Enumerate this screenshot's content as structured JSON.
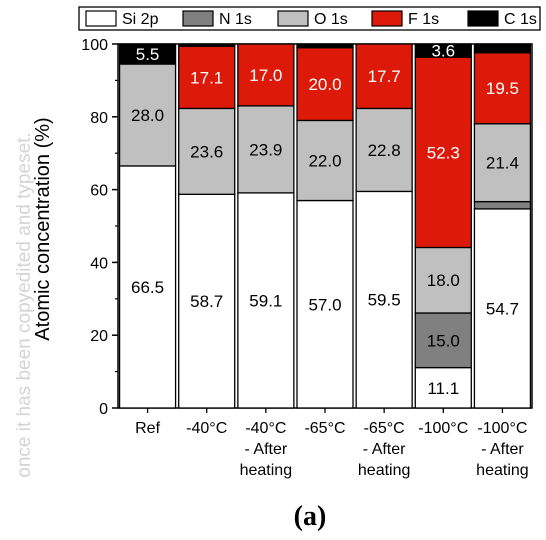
{
  "watermark_text": "once it has been copyedited and typeset.",
  "panel_label": "(a)",
  "chart_data": {
    "type": "bar",
    "stacked": true,
    "ylabel": "Atomic concentration (%)",
    "ylim": [
      0,
      100
    ],
    "yticks": [
      0,
      20,
      40,
      60,
      80,
      100
    ],
    "categories": [
      [
        "Ref"
      ],
      [
        "-40°C"
      ],
      [
        "-40°C",
        "- After",
        "heating"
      ],
      [
        "-65°C"
      ],
      [
        "-65°C",
        "- After",
        "heating"
      ],
      [
        "-100°C"
      ],
      [
        "-100°C",
        "- After",
        "heating"
      ]
    ],
    "legend_position": "top",
    "series": [
      {
        "name": "Si 2p",
        "color": "#ffffff",
        "label_color": "#000000",
        "values": [
          66.5,
          58.7,
          59.1,
          57.0,
          59.5,
          11.1,
          54.7
        ],
        "labels": [
          "66.5",
          "58.7",
          "59.1",
          "57.0",
          "59.5",
          "11.1",
          "54.7"
        ]
      },
      {
        "name": "N 1s",
        "color": "#808080",
        "label_color": "#000000",
        "values": [
          0,
          0,
          0,
          0,
          0,
          15.0,
          2.0
        ],
        "labels": [
          "",
          "",
          "",
          "",
          "",
          "15.0",
          ""
        ]
      },
      {
        "name": "O 1s",
        "color": "#c0c0c0",
        "label_color": "#000000",
        "values": [
          28.0,
          23.6,
          23.9,
          22.0,
          22.8,
          18.0,
          21.4
        ],
        "labels": [
          "28.0",
          "23.6",
          "23.9",
          "22.0",
          "22.8",
          "18.0",
          "21.4"
        ]
      },
      {
        "name": "F 1s",
        "color": "#dd1a0a",
        "label_color": "#ffffff",
        "values": [
          0,
          17.1,
          17.0,
          20.0,
          17.7,
          52.3,
          19.5
        ],
        "labels": [
          "",
          "17.1",
          "17.0",
          "20.0",
          "17.7",
          "52.3",
          "19.5"
        ]
      },
      {
        "name": "C 1s",
        "color": "#000000",
        "label_color": "#ffffff",
        "values": [
          5.5,
          0.6,
          0.0,
          1.0,
          0.0,
          3.6,
          2.4
        ],
        "labels": [
          "5.5",
          "",
          "",
          "",
          "",
          "3.6",
          ""
        ]
      }
    ]
  }
}
